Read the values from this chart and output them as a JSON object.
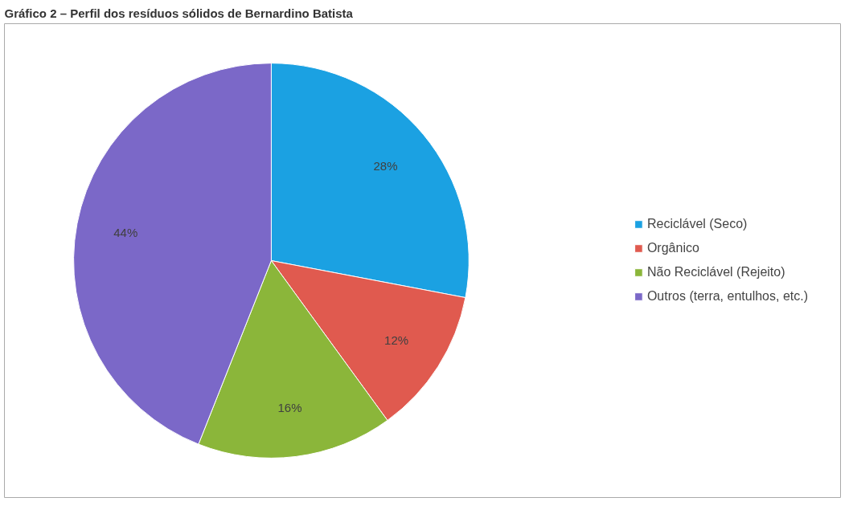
{
  "chart_data": {
    "type": "pie",
    "title": "Gráfico 2 – Perfil dos resíduos sólidos de Bernardino Batista",
    "categories": [
      "Reciclável (Seco)",
      "Orgânico",
      "Não Reciclável (Rejeito)",
      "Outros (terra, entulhos, etc.)"
    ],
    "values": [
      28,
      12,
      16,
      44
    ],
    "value_labels": [
      "28%",
      "12%",
      "16%",
      "44%"
    ],
    "colors": [
      "#1ba1e2",
      "#e05a4f",
      "#8bb63a",
      "#7b68c8"
    ],
    "legend": "right"
  }
}
